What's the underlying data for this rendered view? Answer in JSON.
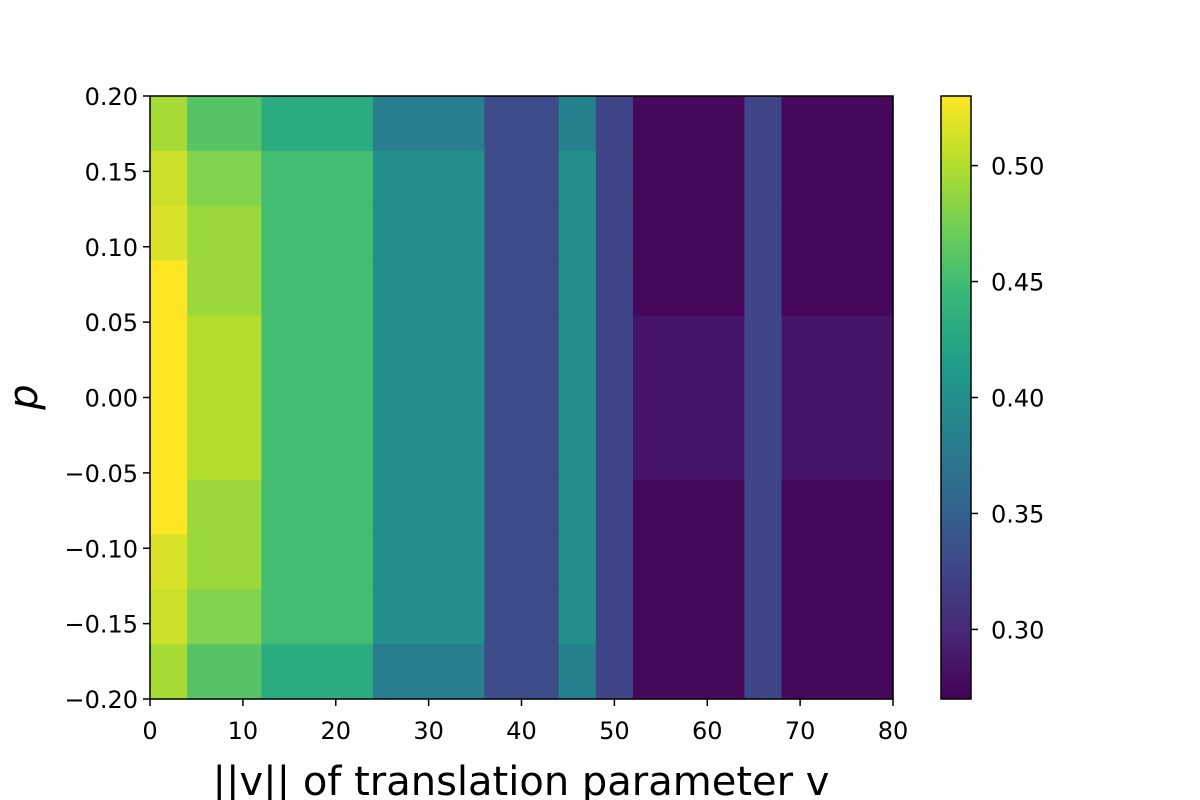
{
  "chart_data": {
    "type": "heatmap",
    "title": "",
    "xlabel": "||v|| of translation parameter v",
    "ylabel": "p",
    "xlim": [
      0,
      80
    ],
    "ylim": [
      -0.2,
      0.2
    ],
    "grid": false,
    "colormap": "viridis",
    "colorbar": {
      "range": [
        0.27,
        0.53
      ],
      "ticks": [
        0.3,
        0.35,
        0.4,
        0.45,
        0.5
      ],
      "tick_labels": [
        "0.30",
        "0.35",
        "0.40",
        "0.45",
        "0.50"
      ],
      "placement": "right"
    },
    "x_ticks": [
      0,
      10,
      20,
      30,
      40,
      50,
      60,
      70,
      80
    ],
    "x_tick_labels": [
      "0",
      "10",
      "20",
      "30",
      "40",
      "50",
      "60",
      "70",
      "80"
    ],
    "y_ticks": [
      0.2,
      0.15,
      0.1,
      0.05,
      0.0,
      -0.05,
      -0.1,
      -0.15,
      -0.2
    ],
    "y_tick_labels": [
      "0.20",
      "0.15",
      "0.10",
      "0.05",
      "0.00",
      "−0.05",
      "−0.10",
      "−0.15",
      "−0.20"
    ],
    "x_edges": [
      0,
      4,
      12,
      24,
      36,
      44,
      48,
      52,
      64,
      68,
      80
    ],
    "y_edges": [
      0.2,
      0.1636,
      0.1273,
      0.0909,
      0.0545,
      -0.0545,
      -0.0909,
      -0.1273,
      -0.1636,
      -0.2
    ],
    "values": [
      [
        0.495,
        0.46,
        0.43,
        0.38,
        0.33,
        0.385,
        0.325,
        0.275,
        0.325,
        0.275
      ],
      [
        0.51,
        0.48,
        0.45,
        0.4,
        0.33,
        0.4,
        0.325,
        0.275,
        0.325,
        0.275
      ],
      [
        0.515,
        0.49,
        0.45,
        0.4,
        0.33,
        0.4,
        0.325,
        0.275,
        0.325,
        0.275
      ],
      [
        0.53,
        0.49,
        0.45,
        0.4,
        0.33,
        0.4,
        0.325,
        0.275,
        0.325,
        0.275
      ],
      [
        0.53,
        0.5,
        0.45,
        0.4,
        0.33,
        0.4,
        0.325,
        0.285,
        0.325,
        0.285
      ],
      [
        0.53,
        0.49,
        0.45,
        0.4,
        0.33,
        0.4,
        0.325,
        0.275,
        0.325,
        0.275
      ],
      [
        0.515,
        0.49,
        0.45,
        0.4,
        0.33,
        0.4,
        0.325,
        0.275,
        0.325,
        0.275
      ],
      [
        0.51,
        0.48,
        0.45,
        0.4,
        0.33,
        0.4,
        0.325,
        0.275,
        0.325,
        0.275
      ],
      [
        0.495,
        0.46,
        0.43,
        0.38,
        0.33,
        0.385,
        0.325,
        0.275,
        0.325,
        0.275
      ]
    ]
  }
}
